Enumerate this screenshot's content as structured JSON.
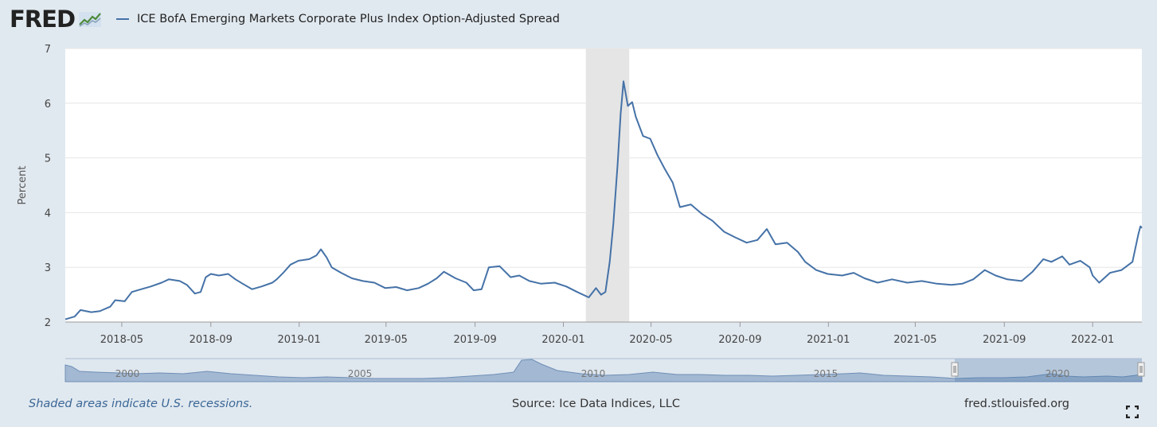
{
  "header": {
    "logo_text": "FRED",
    "logo_icon": "fred-line-chart-icon"
  },
  "chart_data": {
    "type": "line",
    "title": "ICE BofA Emerging Markets Corporate Plus Index Option-Adjusted Spread",
    "ylabel": "Percent",
    "xlabel": "",
    "ylim": [
      2,
      7
    ],
    "yticks": [
      "2",
      "3",
      "4",
      "5",
      "6",
      "7"
    ],
    "xlim": [
      "2018-02-12",
      "2022-03-10"
    ],
    "xticks": [
      {
        "date": "2018-05-01",
        "label": "2018-05"
      },
      {
        "date": "2018-09-01",
        "label": "2018-09"
      },
      {
        "date": "2019-01-01",
        "label": "2019-01"
      },
      {
        "date": "2019-05-01",
        "label": "2019-05"
      },
      {
        "date": "2019-09-01",
        "label": "2019-09"
      },
      {
        "date": "2020-01-01",
        "label": "2020-01"
      },
      {
        "date": "2020-05-01",
        "label": "2020-05"
      },
      {
        "date": "2020-09-01",
        "label": "2020-09"
      },
      {
        "date": "2021-01-01",
        "label": "2021-01"
      },
      {
        "date": "2021-05-01",
        "label": "2021-05"
      },
      {
        "date": "2021-09-01",
        "label": "2021-09"
      },
      {
        "date": "2022-01-01",
        "label": "2022-01"
      }
    ],
    "recession": {
      "start": "2020-02-01",
      "end": "2020-04-01"
    },
    "series": [
      {
        "name": "ICE BofA Emerging Markets Corporate Plus Index Option-Adjusted Spread",
        "color": "#4572a7",
        "points": [
          [
            "2018-02-12",
            2.05
          ],
          [
            "2018-02-25",
            2.1
          ],
          [
            "2018-03-05",
            2.22
          ],
          [
            "2018-03-20",
            2.18
          ],
          [
            "2018-04-01",
            2.2
          ],
          [
            "2018-04-15",
            2.28
          ],
          [
            "2018-04-22",
            2.4
          ],
          [
            "2018-05-05",
            2.38
          ],
          [
            "2018-05-15",
            2.55
          ],
          [
            "2018-05-28",
            2.6
          ],
          [
            "2018-06-10",
            2.65
          ],
          [
            "2018-06-25",
            2.72
          ],
          [
            "2018-07-05",
            2.78
          ],
          [
            "2018-07-20",
            2.75
          ],
          [
            "2018-07-30",
            2.68
          ],
          [
            "2018-08-10",
            2.52
          ],
          [
            "2018-08-18",
            2.55
          ],
          [
            "2018-08-25",
            2.82
          ],
          [
            "2018-09-01",
            2.88
          ],
          [
            "2018-09-12",
            2.85
          ],
          [
            "2018-09-25",
            2.88
          ],
          [
            "2018-10-05",
            2.78
          ],
          [
            "2018-10-15",
            2.7
          ],
          [
            "2018-10-28",
            2.6
          ],
          [
            "2018-11-10",
            2.65
          ],
          [
            "2018-11-25",
            2.72
          ],
          [
            "2018-12-01",
            2.78
          ],
          [
            "2018-12-10",
            2.9
          ],
          [
            "2018-12-20",
            3.05
          ],
          [
            "2018-12-31",
            3.12
          ],
          [
            "2019-01-15",
            3.15
          ],
          [
            "2019-01-25",
            3.22
          ],
          [
            "2019-01-31",
            3.33
          ],
          [
            "2019-02-08",
            3.18
          ],
          [
            "2019-02-15",
            3.0
          ],
          [
            "2019-02-28",
            2.9
          ],
          [
            "2019-03-15",
            2.8
          ],
          [
            "2019-03-30",
            2.75
          ],
          [
            "2019-04-15",
            2.72
          ],
          [
            "2019-04-30",
            2.62
          ],
          [
            "2019-05-15",
            2.64
          ],
          [
            "2019-05-30",
            2.58
          ],
          [
            "2019-06-15",
            2.62
          ],
          [
            "2019-06-28",
            2.7
          ],
          [
            "2019-07-10",
            2.8
          ],
          [
            "2019-07-20",
            2.92
          ],
          [
            "2019-08-05",
            2.8
          ],
          [
            "2019-08-20",
            2.72
          ],
          [
            "2019-08-30",
            2.58
          ],
          [
            "2019-09-10",
            2.6
          ],
          [
            "2019-09-20",
            3.0
          ],
          [
            "2019-10-05",
            3.02
          ],
          [
            "2019-10-20",
            2.82
          ],
          [
            "2019-11-01",
            2.85
          ],
          [
            "2019-11-15",
            2.75
          ],
          [
            "2019-12-01",
            2.7
          ],
          [
            "2019-12-20",
            2.72
          ],
          [
            "2020-01-05",
            2.65
          ],
          [
            "2020-01-20",
            2.55
          ],
          [
            "2020-02-05",
            2.45
          ],
          [
            "2020-02-15",
            2.62
          ],
          [
            "2020-02-22",
            2.5
          ],
          [
            "2020-02-28",
            2.55
          ],
          [
            "2020-03-05",
            3.1
          ],
          [
            "2020-03-10",
            3.8
          ],
          [
            "2020-03-16",
            4.9
          ],
          [
            "2020-03-20",
            5.8
          ],
          [
            "2020-03-24",
            6.4
          ],
          [
            "2020-03-30",
            5.95
          ],
          [
            "2020-04-05",
            6.02
          ],
          [
            "2020-04-10",
            5.75
          ],
          [
            "2020-04-20",
            5.4
          ],
          [
            "2020-04-30",
            5.35
          ],
          [
            "2020-05-10",
            5.05
          ],
          [
            "2020-05-20",
            4.8
          ],
          [
            "2020-05-31",
            4.55
          ],
          [
            "2020-06-10",
            4.1
          ],
          [
            "2020-06-25",
            4.15
          ],
          [
            "2020-07-10",
            3.98
          ],
          [
            "2020-07-25",
            3.85
          ],
          [
            "2020-08-10",
            3.65
          ],
          [
            "2020-08-25",
            3.55
          ],
          [
            "2020-09-10",
            3.45
          ],
          [
            "2020-09-25",
            3.5
          ],
          [
            "2020-10-08",
            3.7
          ],
          [
            "2020-10-20",
            3.42
          ],
          [
            "2020-11-05",
            3.45
          ],
          [
            "2020-11-20",
            3.28
          ],
          [
            "2020-11-30",
            3.1
          ],
          [
            "2020-12-15",
            2.95
          ],
          [
            "2020-12-31",
            2.88
          ],
          [
            "2021-01-20",
            2.85
          ],
          [
            "2021-02-05",
            2.9
          ],
          [
            "2021-02-20",
            2.8
          ],
          [
            "2021-03-10",
            2.72
          ],
          [
            "2021-03-30",
            2.78
          ],
          [
            "2021-04-20",
            2.72
          ],
          [
            "2021-05-10",
            2.75
          ],
          [
            "2021-05-31",
            2.7
          ],
          [
            "2021-06-20",
            2.68
          ],
          [
            "2021-07-05",
            2.7
          ],
          [
            "2021-07-20",
            2.78
          ],
          [
            "2021-08-05",
            2.95
          ],
          [
            "2021-08-20",
            2.85
          ],
          [
            "2021-09-05",
            2.78
          ],
          [
            "2021-09-25",
            2.75
          ],
          [
            "2021-10-10",
            2.92
          ],
          [
            "2021-10-25",
            3.15
          ],
          [
            "2021-11-05",
            3.1
          ],
          [
            "2021-11-20",
            3.2
          ],
          [
            "2021-11-30",
            3.05
          ],
          [
            "2021-12-15",
            3.12
          ],
          [
            "2021-12-28",
            3.0
          ],
          [
            "2022-01-01",
            2.85
          ],
          [
            "2022-01-10",
            2.72
          ],
          [
            "2022-01-25",
            2.9
          ],
          [
            "2022-02-10",
            2.95
          ],
          [
            "2022-02-25",
            3.1
          ],
          [
            "2022-03-05",
            3.6
          ],
          [
            "2022-03-08",
            3.75
          ],
          [
            "2022-03-10",
            3.72
          ]
        ]
      }
    ]
  },
  "navigator": {
    "labels": [
      "2000",
      "2005",
      "2010",
      "2015",
      "2020"
    ]
  },
  "footer": {
    "note": "Shaded areas indicate U.S. recessions.",
    "source": "Source: Ice Data Indices, LLC",
    "site": "fred.stlouisfed.org"
  }
}
